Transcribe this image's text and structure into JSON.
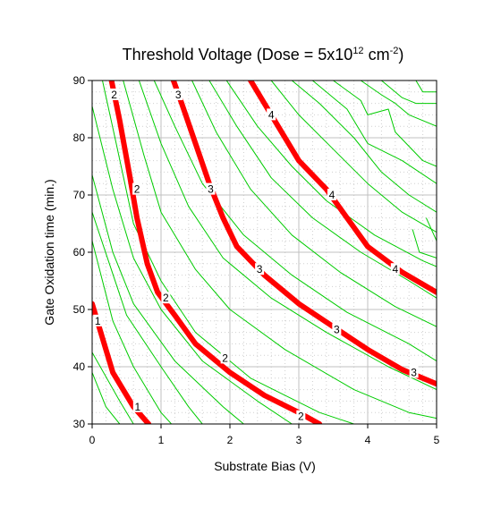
{
  "chart_data": {
    "type": "contour",
    "title": {
      "main": "Threshold Voltage (Dose = 5x10",
      "exp1": "12",
      "mid": " cm",
      "exp2": "-2",
      "end": ")"
    },
    "xlabel": "Substrate Bias (V)",
    "ylabel": "Gate Oxidation time (min.)",
    "xlim": [
      0,
      5
    ],
    "ylim": [
      30,
      90
    ],
    "xticks": [
      "0",
      "1",
      "2",
      "3",
      "4",
      "5"
    ],
    "yticks": [
      "30",
      "40",
      "50",
      "60",
      "70",
      "80",
      "90"
    ],
    "grid": true,
    "colors": {
      "major": "#ff0000",
      "minor": "#00cc00",
      "grid": "#c0c0c0"
    },
    "major_contours": [
      {
        "level": "1",
        "points": [
          [
            0.0,
            51
          ],
          [
            0.1,
            47
          ],
          [
            0.3,
            39
          ],
          [
            0.6,
            33
          ],
          [
            0.82,
            30
          ]
        ],
        "labels": [
          [
            0.08,
            48
          ],
          [
            0.66,
            33
          ]
        ]
      },
      {
        "level": "2",
        "points": [
          [
            0.28,
            90
          ],
          [
            0.4,
            83
          ],
          [
            0.55,
            73
          ],
          [
            0.65,
            66
          ],
          [
            0.8,
            58
          ],
          [
            0.95,
            53
          ],
          [
            1.2,
            49
          ],
          [
            1.5,
            44
          ],
          [
            2.0,
            39
          ],
          [
            2.5,
            35
          ],
          [
            3.0,
            32
          ],
          [
            3.3,
            30
          ]
        ],
        "labels": [
          [
            0.32,
            87.5
          ],
          [
            0.65,
            71
          ],
          [
            1.07,
            52
          ],
          [
            1.93,
            41.5
          ],
          [
            3.03,
            31.3
          ]
        ]
      },
      {
        "level": "3",
        "points": [
          [
            1.18,
            90
          ],
          [
            1.3,
            86
          ],
          [
            1.5,
            79
          ],
          [
            1.7,
            72
          ],
          [
            1.9,
            66
          ],
          [
            2.1,
            61
          ],
          [
            2.5,
            56
          ],
          [
            3.0,
            51
          ],
          [
            3.5,
            47
          ],
          [
            4.0,
            43
          ],
          [
            4.5,
            39.5
          ],
          [
            5.0,
            37
          ]
        ],
        "labels": [
          [
            1.25,
            87.5
          ],
          [
            1.72,
            71
          ],
          [
            2.43,
            57
          ],
          [
            3.55,
            46.5
          ],
          [
            4.67,
            39
          ]
        ]
      },
      {
        "level": "4",
        "points": [
          [
            2.3,
            90
          ],
          [
            2.6,
            84
          ],
          [
            3.0,
            76
          ],
          [
            3.4,
            71
          ],
          [
            3.7,
            66
          ],
          [
            4.0,
            61
          ],
          [
            4.5,
            56.5
          ],
          [
            5.0,
            53
          ]
        ],
        "labels": [
          [
            2.6,
            84
          ],
          [
            3.48,
            70
          ],
          [
            4.4,
            57
          ]
        ]
      }
    ],
    "minor_contours": [
      [
        [
          0,
          39
        ],
        [
          0.2,
          33
        ],
        [
          0.4,
          30
        ]
      ],
      [
        [
          0,
          42.5
        ],
        [
          0.4,
          34
        ],
        [
          0.6,
          30
        ]
      ],
      [
        [
          0,
          62
        ],
        [
          0.3,
          48
        ],
        [
          0.6,
          40
        ],
        [
          1.0,
          32
        ],
        [
          1.15,
          30
        ]
      ],
      [
        [
          0,
          67
        ],
        [
          0.5,
          49
        ],
        [
          1.0,
          40
        ],
        [
          1.4,
          33
        ],
        [
          1.6,
          30
        ]
      ],
      [
        [
          0,
          73.5
        ],
        [
          0.3,
          60
        ],
        [
          0.6,
          51
        ],
        [
          1.2,
          41
        ],
        [
          1.9,
          33
        ],
        [
          2.2,
          30
        ]
      ],
      [
        [
          0,
          85.5
        ],
        [
          0.3,
          71
        ],
        [
          0.6,
          59
        ],
        [
          1.0,
          50
        ],
        [
          1.6,
          41
        ],
        [
          2.4,
          34
        ],
        [
          2.9,
          30
        ]
      ],
      [
        [
          0.15,
          90
        ],
        [
          0.35,
          79
        ],
        [
          0.6,
          65
        ],
        [
          1.0,
          55
        ],
        [
          1.5,
          46
        ],
        [
          2.3,
          38
        ],
        [
          3.3,
          32
        ],
        [
          3.8,
          30
        ]
      ],
      [
        [
          0.45,
          90
        ],
        [
          0.75,
          77
        ],
        [
          1.0,
          67
        ],
        [
          1.5,
          57
        ],
        [
          2.0,
          50
        ],
        [
          2.8,
          43
        ],
        [
          3.8,
          36
        ],
        [
          4.6,
          32
        ],
        [
          5.0,
          31
        ]
      ],
      [
        [
          0.68,
          90
        ],
        [
          1.0,
          79
        ],
        [
          1.4,
          68
        ],
        [
          1.9,
          59
        ],
        [
          2.6,
          52
        ],
        [
          3.4,
          46
        ],
        [
          4.3,
          40
        ],
        [
          5.0,
          36
        ]
      ],
      [
        [
          0.9,
          90
        ],
        [
          1.2,
          82
        ],
        [
          1.6,
          72
        ],
        [
          2.2,
          63
        ],
        [
          2.9,
          56
        ],
        [
          3.7,
          49.5
        ],
        [
          4.6,
          44
        ],
        [
          5.0,
          41
        ]
      ],
      [
        [
          1.45,
          90
        ],
        [
          1.8,
          81
        ],
        [
          2.3,
          71
        ],
        [
          2.9,
          63
        ],
        [
          3.6,
          56.5
        ],
        [
          4.4,
          50.5
        ],
        [
          5.0,
          47
        ]
      ],
      [
        [
          1.7,
          90
        ],
        [
          2.1,
          82
        ],
        [
          2.6,
          73
        ],
        [
          3.2,
          66
        ],
        [
          3.9,
          60
        ],
        [
          4.6,
          55
        ],
        [
          5.0,
          52
        ]
      ],
      [
        [
          1.95,
          90
        ],
        [
          2.4,
          82
        ],
        [
          2.9,
          75
        ],
        [
          3.4,
          69
        ],
        [
          4.1,
          63
        ],
        [
          4.8,
          58.5
        ],
        [
          5.0,
          57.5
        ]
      ],
      [
        [
          2.6,
          90
        ],
        [
          3.0,
          84
        ],
        [
          3.5,
          78
        ],
        [
          4.0,
          72
        ],
        [
          4.5,
          67
        ],
        [
          5.0,
          63.5
        ]
      ],
      [
        [
          2.9,
          90
        ],
        [
          3.3,
          86
        ],
        [
          3.8,
          80
        ],
        [
          4.2,
          74
        ],
        [
          4.6,
          70
        ],
        [
          5.0,
          67
        ]
      ],
      [
        [
          3.2,
          90
        ],
        [
          3.7,
          85
        ],
        [
          4.0,
          79
        ],
        [
          4.5,
          76
        ],
        [
          5.0,
          72
        ]
      ],
      [
        [
          3.5,
          90
        ],
        [
          3.9,
          86.5
        ],
        [
          4.0,
          84
        ],
        [
          4.3,
          85
        ],
        [
          4.4,
          81
        ],
        [
          4.8,
          76
        ],
        [
          5.0,
          75
        ]
      ],
      [
        [
          3.9,
          90
        ],
        [
          4.2,
          87.5
        ],
        [
          4.4,
          86
        ],
        [
          4.6,
          84
        ],
        [
          5.0,
          82
        ]
      ],
      [
        [
          4.2,
          90
        ],
        [
          4.3,
          89
        ],
        [
          4.5,
          87
        ],
        [
          4.7,
          86
        ],
        [
          5.0,
          86
        ]
      ],
      [
        [
          4.7,
          90
        ],
        [
          4.8,
          88
        ],
        [
          5.0,
          88
        ]
      ],
      [
        [
          4.65,
          64
        ],
        [
          4.75,
          60
        ],
        [
          5.0,
          59
        ]
      ],
      [
        [
          4.85,
          66
        ],
        [
          5.0,
          62
        ]
      ]
    ]
  }
}
